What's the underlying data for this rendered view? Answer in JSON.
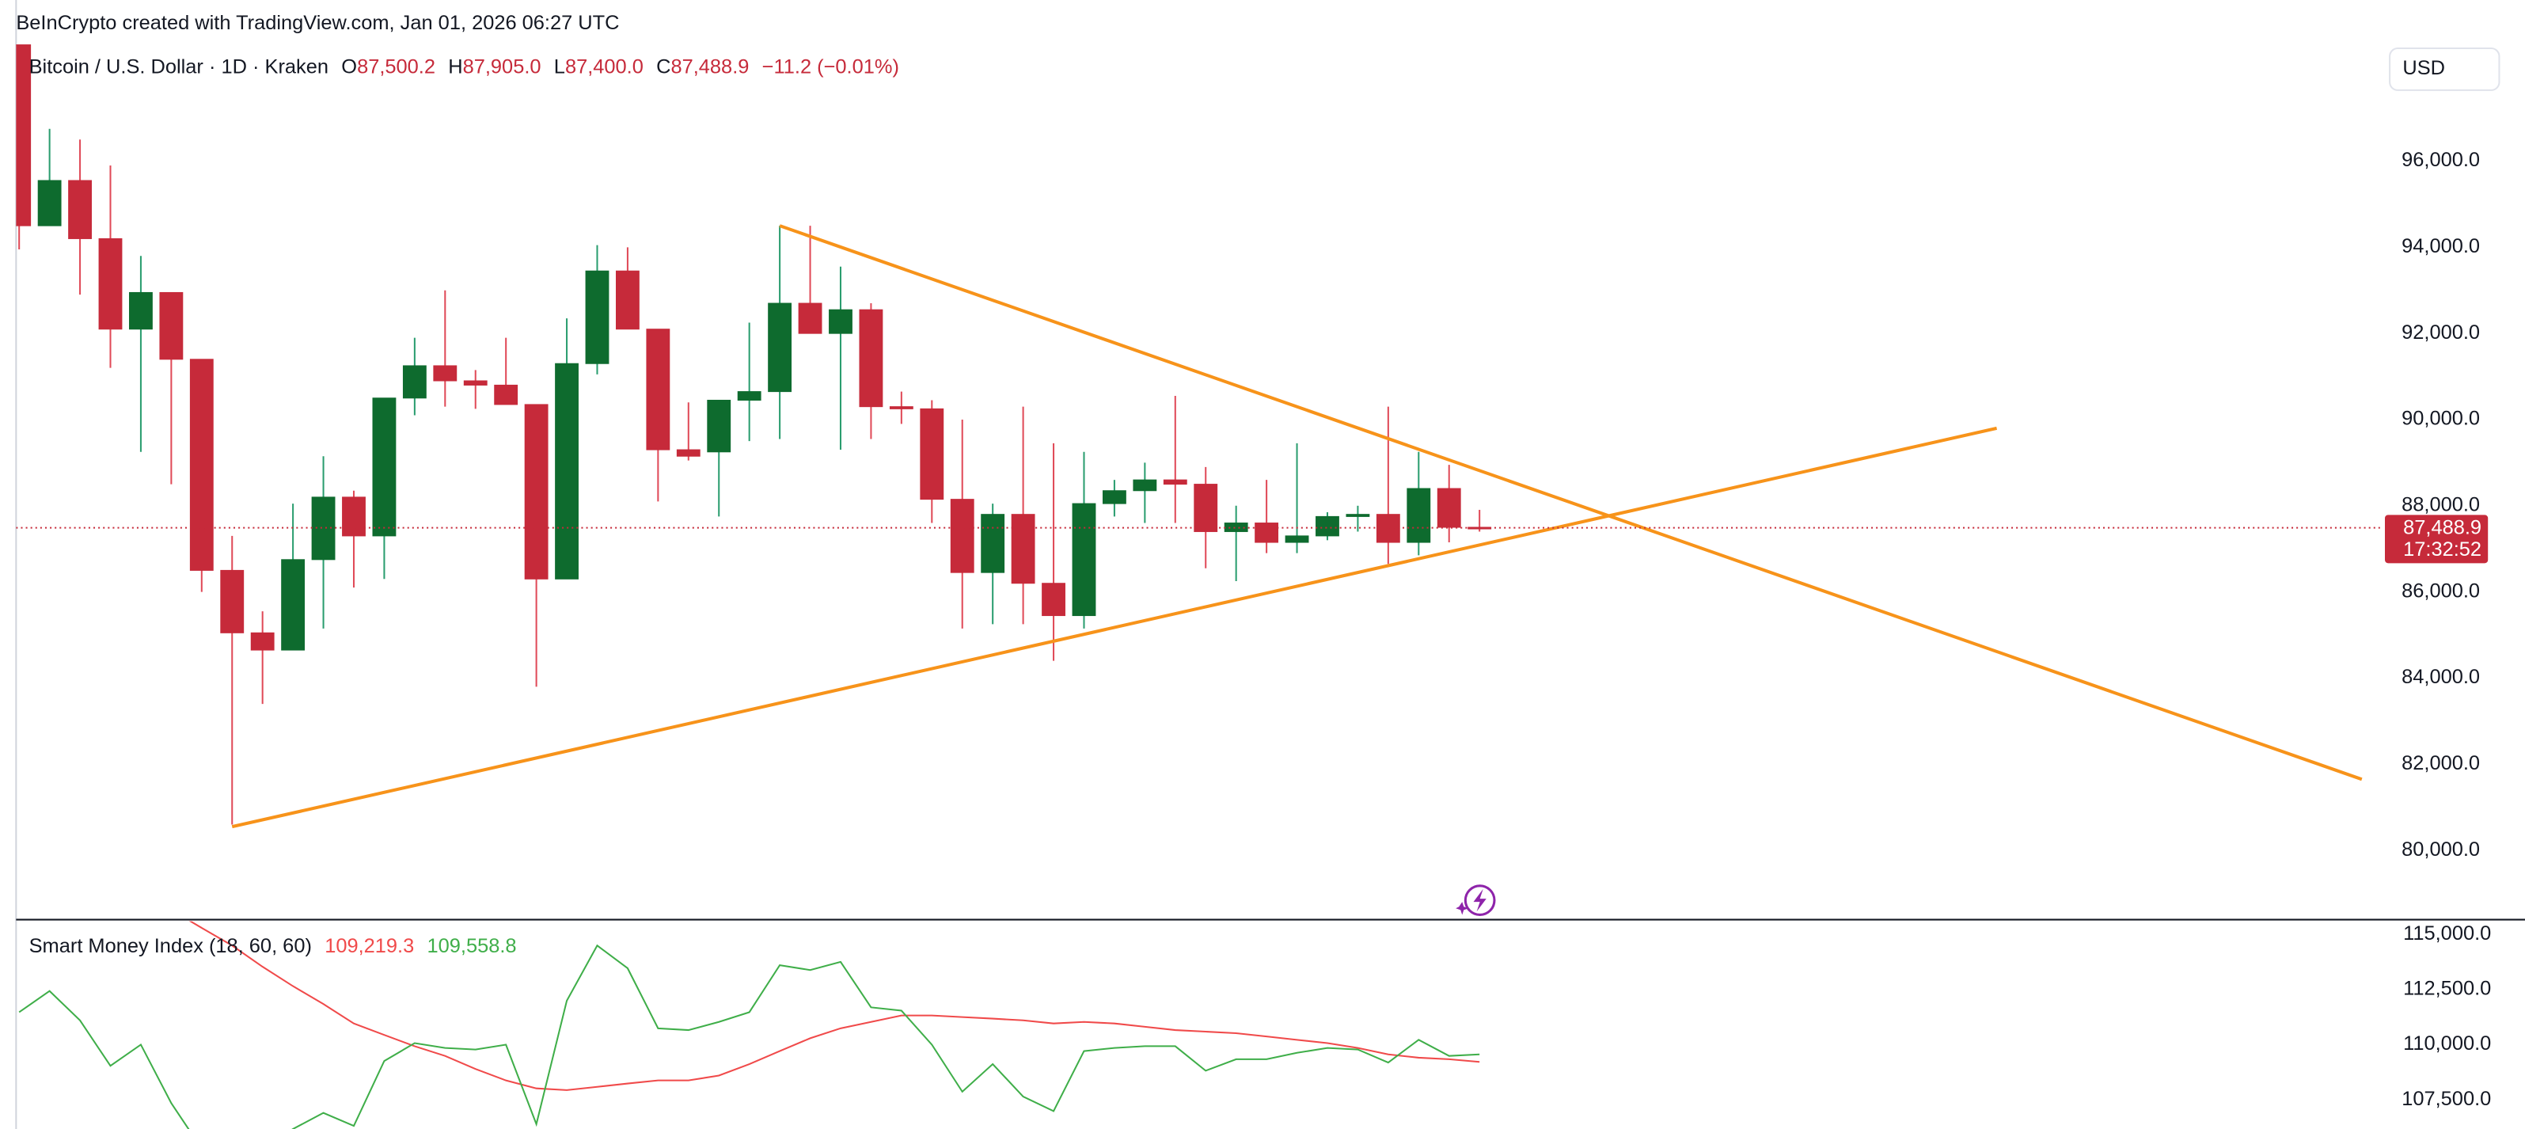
{
  "header": {
    "attribution": "BeInCrypto created with TradingView.com, Jan 01, 2026 06:27 UTC"
  },
  "chart_data": [
    {
      "type": "candlestick",
      "title": "Bitcoin / U.S. Dollar · 1D · Kraken",
      "legend": [
        {
          "key": "O",
          "value": "87,500.2"
        },
        {
          "key": "H",
          "value": "87,905.0"
        },
        {
          "key": "L",
          "value": "87,400.0"
        },
        {
          "key": "C",
          "value": "87,488.9"
        }
      ],
      "change": "−11.2 (−0.01%)",
      "open": [
        98700,
        94500,
        95550,
        94200,
        92100,
        92950,
        91400,
        86500,
        85050,
        84650,
        86750,
        88200,
        87300,
        90500,
        91250,
        90900,
        90800,
        90350,
        86300,
        91300,
        93450,
        92100,
        89300,
        89250,
        90450,
        90650,
        92700,
        92000,
        92550,
        90300,
        90250,
        88150,
        86450,
        87800,
        86200,
        85450,
        88050,
        88350,
        88600,
        88500,
        87400,
        87600,
        87150,
        87300,
        87750,
        87800,
        87150,
        88400,
        87500.2
      ],
      "high": [
        98700,
        96750,
        96500,
        95900,
        93800,
        92950,
        91400,
        87300,
        85550,
        88050,
        89150,
        88350,
        90500,
        91900,
        93000,
        91150,
        91900,
        90350,
        92350,
        94050,
        94000,
        92100,
        90400,
        90450,
        92250,
        94500,
        94500,
        93550,
        92700,
        90650,
        90450,
        90000,
        88050,
        90300,
        89450,
        89250,
        88600,
        89000,
        90550,
        88900,
        88000,
        88600,
        89450,
        87850,
        88000,
        90300,
        89250,
        88950,
        87905
      ],
      "low": [
        93950,
        94500,
        92900,
        91200,
        89250,
        88500,
        86000,
        80600,
        83400,
        84650,
        85150,
        86100,
        86300,
        90100,
        90300,
        90250,
        90350,
        83800,
        86300,
        91050,
        92100,
        88100,
        89050,
        87750,
        89500,
        89550,
        92000,
        89300,
        89550,
        89900,
        87600,
        85150,
        85250,
        85250,
        84400,
        85150,
        87750,
        87600,
        87600,
        86550,
        86250,
        86900,
        86900,
        87200,
        87400,
        86650,
        86850,
        87150,
        87400
      ],
      "close": [
        94500,
        95550,
        94200,
        92100,
        92950,
        91400,
        86500,
        85050,
        84650,
        86750,
        88200,
        87300,
        90500,
        91250,
        90900,
        90800,
        90350,
        86300,
        91300,
        93450,
        92100,
        89300,
        89150,
        90450,
        90650,
        92700,
        92000,
        92550,
        90300,
        90250,
        88150,
        86450,
        87800,
        86200,
        85450,
        88050,
        88350,
        88600,
        88500,
        87400,
        87600,
        87150,
        87300,
        87750,
        87800,
        87150,
        88400,
        87500,
        87488.9
      ],
      "up_color": "#0e6b2e",
      "down_color": "#c62a3a",
      "up_wick_color": "#2a9d6f",
      "down_wick_color": "#e04a58",
      "xlim": [
        -0.1,
        77.6
      ],
      "ylim": [
        78430,
        99740
      ],
      "yticks": [
        {
          "value": 80000,
          "label": "80,000.0"
        },
        {
          "value": 82000,
          "label": "82,000.0"
        },
        {
          "value": 84000,
          "label": "84,000.0"
        },
        {
          "value": 86000,
          "label": "86,000.0"
        },
        {
          "value": 88000,
          "label": "88,000.0"
        },
        {
          "value": 90000,
          "label": "90,000.0"
        },
        {
          "value": 92000,
          "label": "92,000.0"
        },
        {
          "value": 94000,
          "label": "94,000.0"
        },
        {
          "value": 96000,
          "label": "96,000.0"
        }
      ],
      "last_price_label": "87,488.9",
      "countdown": "17:32:52",
      "currency": "USD",
      "trendlines": [
        {
          "color": "#f7931a",
          "x": [
            25,
            77
          ],
          "y": [
            94500,
            81650
          ]
        },
        {
          "color": "#f7931a",
          "x": [
            7,
            65
          ],
          "y": [
            80550,
            89800
          ]
        }
      ]
    },
    {
      "type": "line",
      "title": "Smart Money Index (18, 60, 60)",
      "xlim": [
        -0.1,
        77.6
      ],
      "ylim": [
        106180,
        115590
      ],
      "yticks": [
        {
          "value": 107500,
          "label": "107,500.0"
        },
        {
          "value": 110000,
          "label": "110,000.0"
        },
        {
          "value": 112500,
          "label": "112,500.0"
        },
        {
          "value": 115000,
          "label": "115,000.0"
        }
      ],
      "series": [
        {
          "color": "#f04a4a",
          "legend_value": "109,219.3",
          "values": [
            null,
            null,
            null,
            null,
            null,
            116100,
            115290,
            114490,
            113530,
            112650,
            111840,
            110960,
            110440,
            109930,
            109490,
            108900,
            108380,
            108020,
            107940,
            108090,
            108240,
            108380,
            108380,
            108600,
            109120,
            109710,
            110290,
            110740,
            111030,
            111320,
            111320,
            111250,
            111180,
            111100,
            110960,
            111030,
            110960,
            110810,
            110660,
            110590,
            110520,
            110370,
            110220,
            110070,
            109850,
            109560,
            109410,
            109340,
            109219.3
          ]
        },
        {
          "color": "#3fae49",
          "legend_value": "109,558.8",
          "values": [
            111470,
            112430,
            111100,
            109040,
            110000,
            107350,
            105290,
            104710,
            105290,
            106180,
            106910,
            106320,
            109260,
            110070,
            109850,
            109780,
            110000,
            106400,
            111990,
            114490,
            113460,
            110740,
            110660,
            111030,
            111470,
            113600,
            113380,
            113750,
            111690,
            111540,
            110000,
            107870,
            109120,
            107650,
            106990,
            109710,
            109850,
            109930,
            109930,
            108820,
            109340,
            109340,
            109630,
            109850,
            109780,
            109190,
            110220,
            109490,
            109558.8
          ]
        }
      ]
    }
  ]
}
